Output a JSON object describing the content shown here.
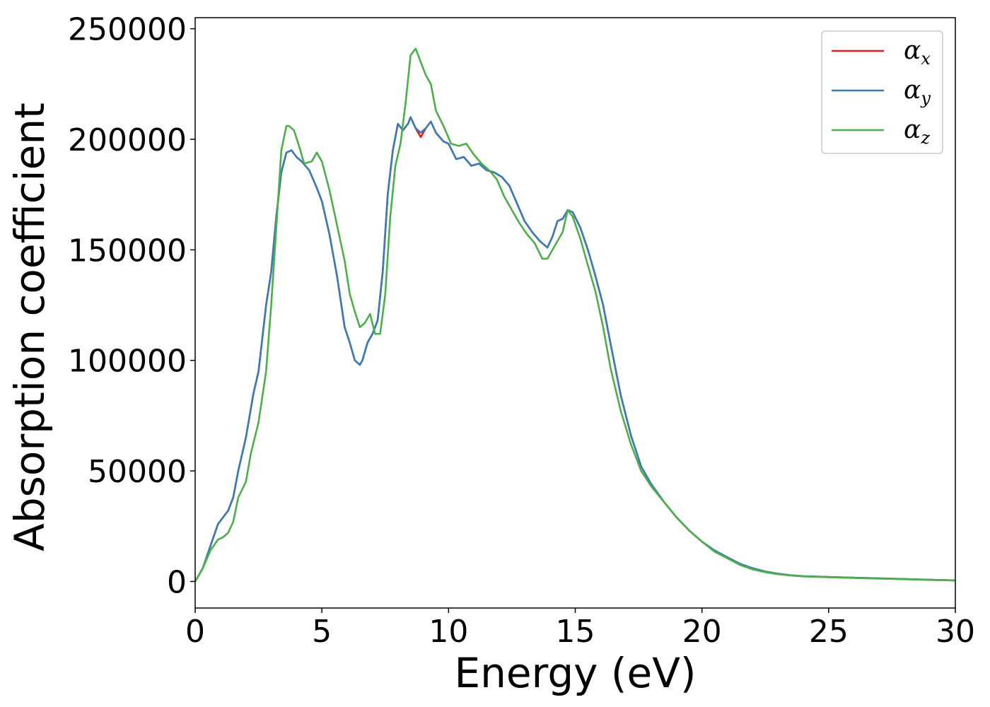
{
  "chart_data": {
    "type": "line",
    "title": "",
    "xlabel": "Energy (eV)",
    "ylabel": "Absorption coefficient",
    "xlim": [
      0,
      30
    ],
    "ylim": [
      -12000,
      255000
    ],
    "xticks": [
      0,
      5,
      10,
      15,
      20,
      25,
      30
    ],
    "yticks": [
      0,
      50000,
      100000,
      150000,
      200000,
      250000
    ],
    "grid": false,
    "legend_position": "top-right",
    "legend": [
      {
        "symbol": "α",
        "subscript": "x",
        "color": "#e41a1c"
      },
      {
        "symbol": "α",
        "subscript": "y",
        "color": "#377eb8"
      },
      {
        "symbol": "α",
        "subscript": "z",
        "color": "#4daf4a"
      }
    ],
    "series": [
      {
        "name": "αx",
        "color": "#e41a1c",
        "x": [
          0,
          0.3,
          0.6,
          0.9,
          1.1,
          1.3,
          1.5,
          1.7,
          2.0,
          2.3,
          2.5,
          2.8,
          3.0,
          3.2,
          3.4,
          3.6,
          3.8,
          4.0,
          4.2,
          4.5,
          4.8,
          5.0,
          5.3,
          5.6,
          5.9,
          6.1,
          6.3,
          6.5,
          6.6,
          6.8,
          7.0,
          7.2,
          7.4,
          7.6,
          7.8,
          8.0,
          8.2,
          8.4,
          8.5,
          8.7,
          8.9,
          9.1,
          9.3,
          9.5,
          9.8,
          10.0,
          10.3,
          10.6,
          10.9,
          11.2,
          11.5,
          11.8,
          12.1,
          12.4,
          12.7,
          13.0,
          13.3,
          13.6,
          13.9,
          14.1,
          14.3,
          14.5,
          14.7,
          14.9,
          15.2,
          15.5,
          15.8,
          16.1,
          16.4,
          16.8,
          17.2,
          17.6,
          18.0,
          18.5,
          19.0,
          19.5,
          20.0,
          20.5,
          21.0,
          21.5,
          22.0,
          22.5,
          23.0,
          23.5,
          24.0,
          25.0,
          26.0,
          27.0,
          28.0,
          29.0,
          30.0
        ],
        "y": [
          0,
          6000,
          16000,
          26000,
          29000,
          32000,
          38000,
          50000,
          65000,
          85000,
          95000,
          125000,
          140000,
          165000,
          185000,
          194000,
          195000,
          192000,
          190000,
          186000,
          178000,
          172000,
          157000,
          138000,
          115000,
          108000,
          100000,
          98000,
          100000,
          108000,
          112000,
          118000,
          140000,
          175000,
          195000,
          207000,
          204000,
          207000,
          210000,
          205000,
          201000,
          205000,
          208000,
          203000,
          199000,
          198000,
          191000,
          192000,
          188000,
          189000,
          186000,
          185000,
          183000,
          179000,
          171000,
          163000,
          158000,
          154000,
          151000,
          156000,
          163000,
          164000,
          168000,
          167000,
          160000,
          150000,
          138000,
          125000,
          107000,
          84000,
          66000,
          52000,
          44000,
          36000,
          29000,
          23000,
          18000,
          14000,
          11000,
          8000,
          6000,
          4500,
          3500,
          2800,
          2400,
          2000,
          1700,
          1400,
          1100,
          800,
          500
        ]
      },
      {
        "name": "αy",
        "color": "#377eb8",
        "x": [
          0,
          0.3,
          0.6,
          0.9,
          1.1,
          1.3,
          1.5,
          1.7,
          2.0,
          2.3,
          2.5,
          2.8,
          3.0,
          3.2,
          3.4,
          3.6,
          3.8,
          4.0,
          4.2,
          4.5,
          4.8,
          5.0,
          5.3,
          5.6,
          5.9,
          6.1,
          6.3,
          6.5,
          6.6,
          6.8,
          7.0,
          7.2,
          7.4,
          7.6,
          7.8,
          8.0,
          8.2,
          8.4,
          8.5,
          8.7,
          8.9,
          9.1,
          9.3,
          9.5,
          9.8,
          10.0,
          10.3,
          10.6,
          10.9,
          11.2,
          11.5,
          11.8,
          12.1,
          12.4,
          12.7,
          13.0,
          13.3,
          13.6,
          13.9,
          14.1,
          14.3,
          14.5,
          14.7,
          14.9,
          15.2,
          15.5,
          15.8,
          16.1,
          16.4,
          16.8,
          17.2,
          17.6,
          18.0,
          18.5,
          19.0,
          19.5,
          20.0,
          20.5,
          21.0,
          21.5,
          22.0,
          22.5,
          23.0,
          23.5,
          24.0,
          25.0,
          26.0,
          27.0,
          28.0,
          29.0,
          30.0
        ],
        "y": [
          0,
          6000,
          16000,
          26000,
          29000,
          32000,
          38000,
          50000,
          65000,
          85000,
          95000,
          125000,
          140000,
          165000,
          185000,
          194000,
          195000,
          192000,
          190000,
          186000,
          178000,
          172000,
          157000,
          138000,
          115000,
          108000,
          100000,
          98000,
          100000,
          108000,
          112000,
          118000,
          140000,
          175000,
          195000,
          207000,
          204000,
          207000,
          210000,
          205000,
          203000,
          205000,
          208000,
          203000,
          199000,
          198000,
          191000,
          192000,
          188000,
          189000,
          186000,
          185000,
          183000,
          179000,
          171000,
          163000,
          158000,
          154000,
          151000,
          156000,
          163000,
          164000,
          168000,
          167000,
          160000,
          150000,
          138000,
          125000,
          107000,
          84000,
          66000,
          52000,
          44000,
          36000,
          29000,
          23000,
          18000,
          14000,
          11000,
          8000,
          6000,
          4500,
          3500,
          2800,
          2400,
          2000,
          1700,
          1400,
          1100,
          800,
          500
        ]
      },
      {
        "name": "αz",
        "color": "#4daf4a",
        "x": [
          0,
          0.3,
          0.6,
          0.9,
          1.1,
          1.3,
          1.5,
          1.7,
          2.0,
          2.2,
          2.5,
          2.8,
          3.0,
          3.2,
          3.4,
          3.6,
          3.7,
          3.9,
          4.1,
          4.3,
          4.6,
          4.8,
          5.0,
          5.3,
          5.6,
          5.9,
          6.1,
          6.3,
          6.5,
          6.7,
          6.9,
          7.1,
          7.3,
          7.5,
          7.7,
          7.9,
          8.1,
          8.3,
          8.5,
          8.7,
          8.9,
          9.1,
          9.3,
          9.5,
          9.8,
          10.1,
          10.4,
          10.7,
          11.0,
          11.3,
          11.6,
          11.9,
          12.2,
          12.5,
          12.8,
          13.1,
          13.4,
          13.7,
          13.9,
          14.1,
          14.3,
          14.5,
          14.7,
          14.9,
          15.2,
          15.5,
          15.8,
          16.1,
          16.4,
          16.8,
          17.2,
          17.6,
          18.0,
          18.5,
          19.0,
          19.5,
          20.0,
          20.5,
          21.0,
          21.5,
          22.0,
          22.5,
          23.0,
          23.5,
          24.0,
          25.0,
          26.0,
          27.0,
          28.0,
          29.0,
          30.0
        ],
        "y": [
          0,
          6000,
          14000,
          19000,
          20000,
          22000,
          27000,
          38000,
          45000,
          58000,
          72000,
          95000,
          125000,
          160000,
          195000,
          206000,
          206000,
          204000,
          197000,
          189000,
          190000,
          194000,
          190000,
          177000,
          161000,
          145000,
          130000,
          122000,
          115000,
          117000,
          121000,
          112000,
          112000,
          130000,
          165000,
          188000,
          198000,
          216000,
          238000,
          241000,
          235000,
          229000,
          225000,
          213000,
          206000,
          198000,
          197000,
          198000,
          193000,
          189000,
          186000,
          182000,
          174000,
          168000,
          162000,
          157000,
          153000,
          146000,
          146000,
          150000,
          154000,
          158000,
          168000,
          165000,
          155000,
          143000,
          131000,
          115000,
          96000,
          77000,
          62000,
          50000,
          43000,
          36000,
          29000,
          23000,
          18000,
          13500,
          10500,
          7500,
          5500,
          4200,
          3300,
          2700,
          2300,
          1900,
          1600,
          1300,
          1000,
          700,
          500
        ]
      }
    ]
  }
}
